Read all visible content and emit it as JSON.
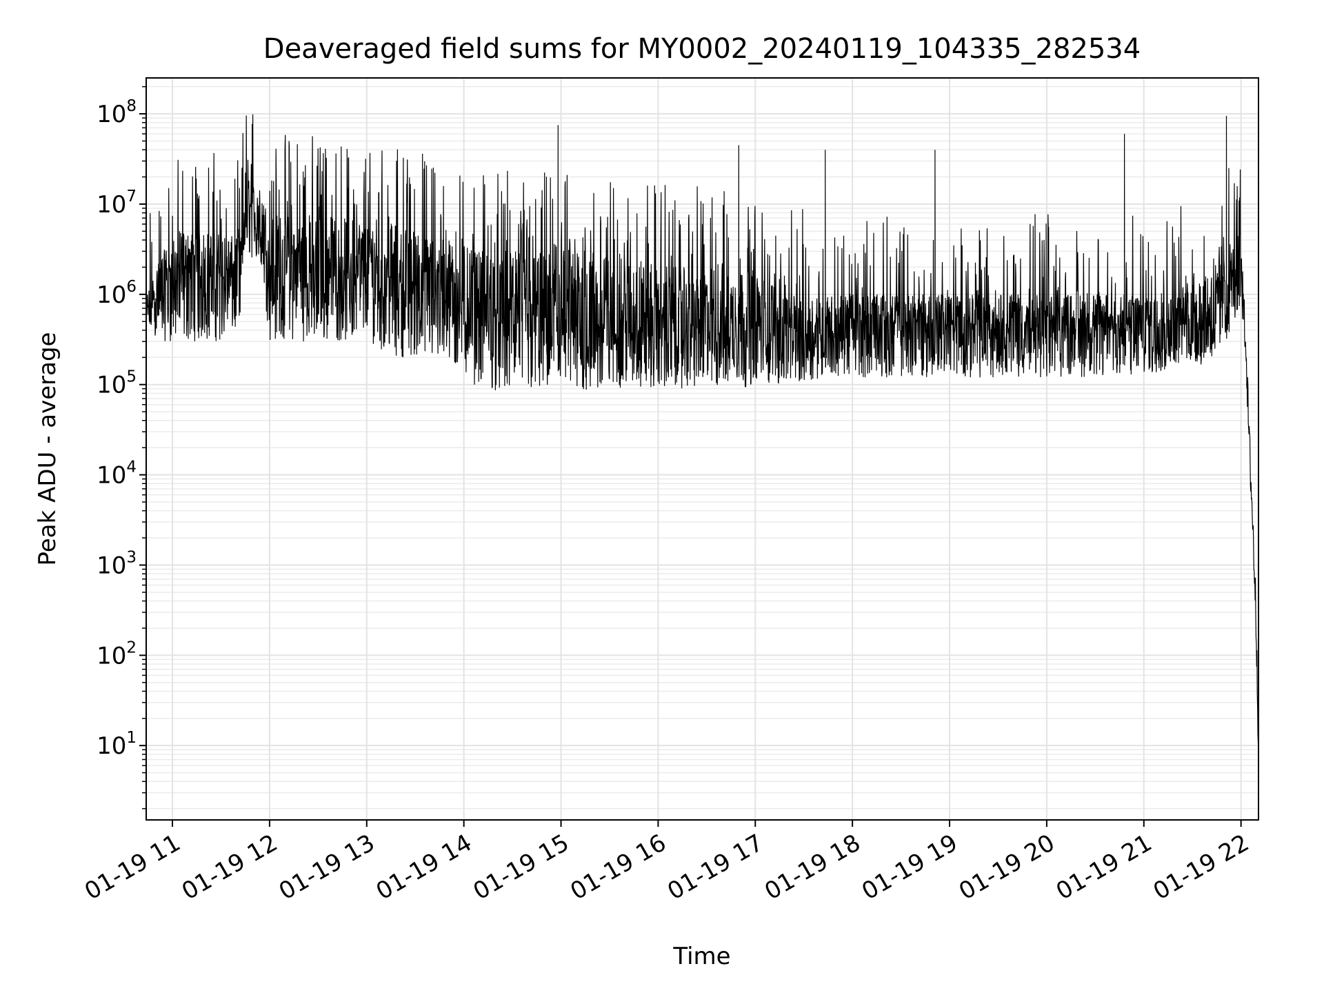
{
  "chart_data": {
    "type": "line",
    "title": "Deaveraged field sums for MY0002_20240119_104335_282534",
    "xlabel": "Time",
    "ylabel": "Peak ADU - average",
    "yscale": "log",
    "ylim": [
      1.5,
      250000000
    ],
    "xlim_hours": [
      10.73,
      22.18
    ],
    "grid": "major and minor, light gray",
    "line_color": "#000000",
    "x_ticks": [
      {
        "label": "01-19 11",
        "hour": 11
      },
      {
        "label": "01-19 12",
        "hour": 12
      },
      {
        "label": "01-19 13",
        "hour": 13
      },
      {
        "label": "01-19 14",
        "hour": 14
      },
      {
        "label": "01-19 15",
        "hour": 15
      },
      {
        "label": "01-19 16",
        "hour": 16
      },
      {
        "label": "01-19 17",
        "hour": 17
      },
      {
        "label": "01-19 18",
        "hour": 18
      },
      {
        "label": "01-19 19",
        "hour": 19
      },
      {
        "label": "01-19 20",
        "hour": 20
      },
      {
        "label": "01-19 21",
        "hour": 21
      },
      {
        "label": "01-19 22",
        "hour": 22
      }
    ],
    "y_ticks": [
      {
        "base": "10",
        "exp": "1",
        "value": 10
      },
      {
        "base": "10",
        "exp": "2",
        "value": 100
      },
      {
        "base": "10",
        "exp": "3",
        "value": 1000
      },
      {
        "base": "10",
        "exp": "4",
        "value": 10000
      },
      {
        "base": "10",
        "exp": "5",
        "value": 100000
      },
      {
        "base": "10",
        "exp": "6",
        "value": 1000000
      },
      {
        "base": "10",
        "exp": "7",
        "value": 10000000
      },
      {
        "base": "10",
        "exp": "8",
        "value": 100000000
      }
    ],
    "series": [
      {
        "x_hours": [
          10.73,
          10.9,
          11.1,
          11.3,
          11.5,
          11.7,
          11.75,
          11.9,
          12.0,
          12.2,
          12.5,
          12.8,
          13.0,
          13.3,
          13.6,
          13.9,
          14.1,
          14.4,
          14.7,
          15.0,
          15.3,
          15.6,
          15.9,
          16.2,
          16.5,
          16.8,
          17.1,
          17.4,
          17.7,
          18.0,
          18.3,
          18.6,
          18.9,
          19.2,
          19.5,
          19.8,
          20.1,
          20.4,
          20.7,
          21.0,
          21.3,
          21.6,
          21.85,
          22.0,
          22.05,
          22.08,
          22.1,
          22.12,
          22.15,
          22.17,
          22.18
        ],
        "y_median": [
          600000,
          1200000,
          1500000,
          1500000,
          1500000,
          1500000,
          8000000,
          6000000,
          1500000,
          1500000,
          1500000,
          1500000,
          1500000,
          1500000,
          1200000,
          1000000,
          600000,
          500000,
          500000,
          400000,
          400000,
          400000,
          400000,
          400000,
          400000,
          400000,
          400000,
          350000,
          350000,
          450000,
          450000,
          450000,
          450000,
          400000,
          450000,
          450000,
          450000,
          450000,
          450000,
          450000,
          500000,
          500000,
          900000,
          1500000,
          300000,
          30000,
          10000,
          3000,
          400,
          50,
          5
        ],
        "y_low_typical": [
          400000,
          300000,
          300000,
          300000,
          300000,
          400000,
          3000000,
          2000000,
          300000,
          300000,
          300000,
          300000,
          300000,
          200000,
          200000,
          150000,
          100000,
          80000,
          80000,
          80000,
          80000,
          90000,
          90000,
          90000,
          90000,
          90000,
          100000,
          100000,
          120000,
          120000,
          120000,
          120000,
          120000,
          120000,
          120000,
          120000,
          120000,
          120000,
          120000,
          120000,
          150000,
          150000,
          300000,
          800000,
          150000,
          15000,
          5000,
          1500,
          200,
          20,
          3
        ],
        "y_high_typical": [
          1000000,
          3000000,
          5000000,
          5000000,
          5000000,
          4000000,
          20000000,
          15000000,
          8000000,
          8000000,
          8000000,
          7000000,
          7000000,
          6000000,
          5000000,
          4000000,
          3000000,
          3000000,
          3000000,
          3000000,
          3000000,
          2500000,
          2500000,
          2000000,
          2000000,
          2000000,
          1500000,
          1200000,
          1000000,
          1000000,
          1000000,
          1000000,
          1000000,
          1000000,
          1000000,
          1000000,
          1000000,
          1000000,
          1000000,
          1000000,
          1200000,
          1500000,
          3000000,
          5000000,
          500000,
          60000,
          20000,
          5000,
          800,
          100,
          10
        ]
      }
    ],
    "notable_peaks": [
      {
        "hour": 12.2,
        "value": 50000000
      },
      {
        "hour": 14.97,
        "value": 75000000
      },
      {
        "hour": 16.83,
        "value": 45000000
      },
      {
        "hour": 17.72,
        "value": 40000000
      },
      {
        "hour": 18.85,
        "value": 40000000
      },
      {
        "hour": 20.8,
        "value": 60000000
      },
      {
        "hour": 21.85,
        "value": 95000000
      }
    ]
  }
}
